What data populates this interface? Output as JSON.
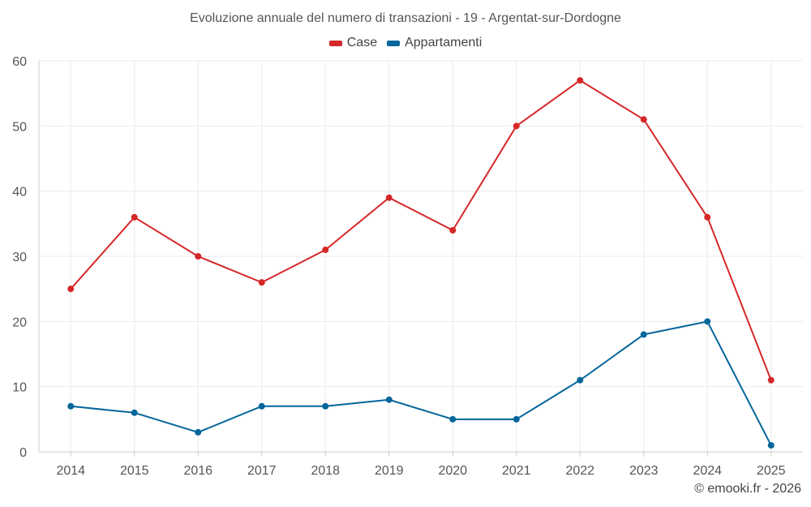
{
  "chart_data": {
    "type": "line",
    "title": "Evoluzione annuale del numero di transazioni - 19 - Argentat-sur-Dordogne",
    "xlabel": "",
    "ylabel": "",
    "categories": [
      "2014",
      "2015",
      "2016",
      "2017",
      "2018",
      "2019",
      "2020",
      "2021",
      "2022",
      "2023",
      "2024",
      "2025"
    ],
    "ylim": [
      0,
      60
    ],
    "yticks": [
      0,
      10,
      20,
      30,
      40,
      50,
      60
    ],
    "grid": true,
    "legend_position": "top-center",
    "series": [
      {
        "name": "Case",
        "color": "#d62728",
        "values": [
          25,
          36,
          30,
          26,
          31,
          39,
          34,
          50,
          57,
          51,
          36,
          11
        ]
      },
      {
        "name": "Appartamenti",
        "color": "#05669c",
        "values": [
          7,
          6,
          3,
          7,
          7,
          8,
          5,
          5,
          11,
          18,
          20,
          1
        ]
      }
    ]
  },
  "credit": "© emooki.fr - 2026"
}
